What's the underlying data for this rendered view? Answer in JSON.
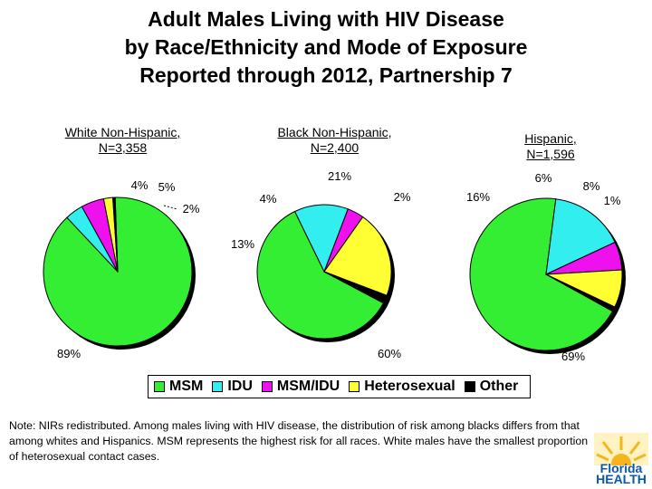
{
  "title_lines": [
    "Adult Males Living with HIV Disease",
    "by Race/Ethnicity and Mode of Exposure",
    "Reported through 2012, Partnership 7"
  ],
  "colors": {
    "MSM": "#33ee33",
    "IDU": "#33eeee",
    "MSM/IDU": "#ee11ee",
    "Heterosexual": "#ffff33",
    "Other": "#000000"
  },
  "chart_data": [
    {
      "type": "pie",
      "subtitle_lines": [
        "White Non-Hispanic,",
        "N=3,358"
      ],
      "categories": [
        "MSM",
        "IDU",
        "MSM/IDU",
        "Heterosexual",
        "Other"
      ],
      "values": [
        89,
        4,
        5,
        2,
        0.5
      ],
      "labels": [
        "89%",
        "4%",
        "5%",
        "2%",
        ""
      ]
    },
    {
      "type": "pie",
      "subtitle_lines": [
        "Black Non-Hispanic,",
        "N=2,400"
      ],
      "categories": [
        "MSM",
        "IDU",
        "MSM/IDU",
        "Heterosexual",
        "Other"
      ],
      "values": [
        60,
        13,
        4,
        21,
        2
      ],
      "labels": [
        "60%",
        "13%",
        "4%",
        "21%",
        "2%"
      ]
    },
    {
      "type": "pie",
      "subtitle_lines": [
        "Hispanic,",
        "N=1,596"
      ],
      "categories": [
        "MSM",
        "IDU",
        "MSM/IDU",
        "Heterosexual",
        "Other"
      ],
      "values": [
        69,
        16,
        6,
        8,
        1
      ],
      "labels": [
        "69%",
        "16%",
        "6%",
        "8%",
        "1%"
      ]
    }
  ],
  "legend": [
    "MSM",
    "IDU",
    "MSM/IDU",
    "Heterosexual",
    "Other"
  ],
  "note": "Note: NIRs redistributed.  Among males living with HIV disease, the distribution of risk among blacks differs from that among whites and Hispanics.  MSM represents the highest risk for all races.  White males have the smallest proportion of heterosexual contact cases.",
  "logo": {
    "line1": "Florida",
    "line2": "HEALTH"
  }
}
